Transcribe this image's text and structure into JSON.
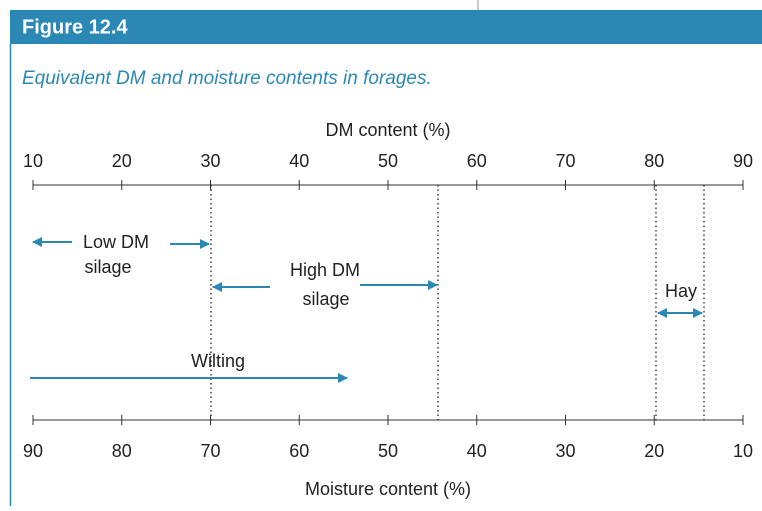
{
  "header": {
    "title": "Figure 12.4"
  },
  "caption": "Equivalent DM and moisture contents in forages.",
  "top_axis": {
    "label": "DM content (%)",
    "ticks": [
      "10",
      "20",
      "30",
      "40",
      "50",
      "60",
      "70",
      "80",
      "90"
    ]
  },
  "bottom_axis": {
    "label": "Moisture content (%)",
    "ticks": [
      "90",
      "80",
      "70",
      "60",
      "50",
      "40",
      "30",
      "20",
      "10"
    ]
  },
  "ranges": [
    {
      "lines": [
        "Low DM",
        "silage"
      ]
    },
    {
      "lines": [
        "High DM",
        "silage"
      ]
    },
    {
      "lines": [
        "Hay"
      ]
    },
    {
      "lines": [
        "Wilting"
      ]
    }
  ]
}
